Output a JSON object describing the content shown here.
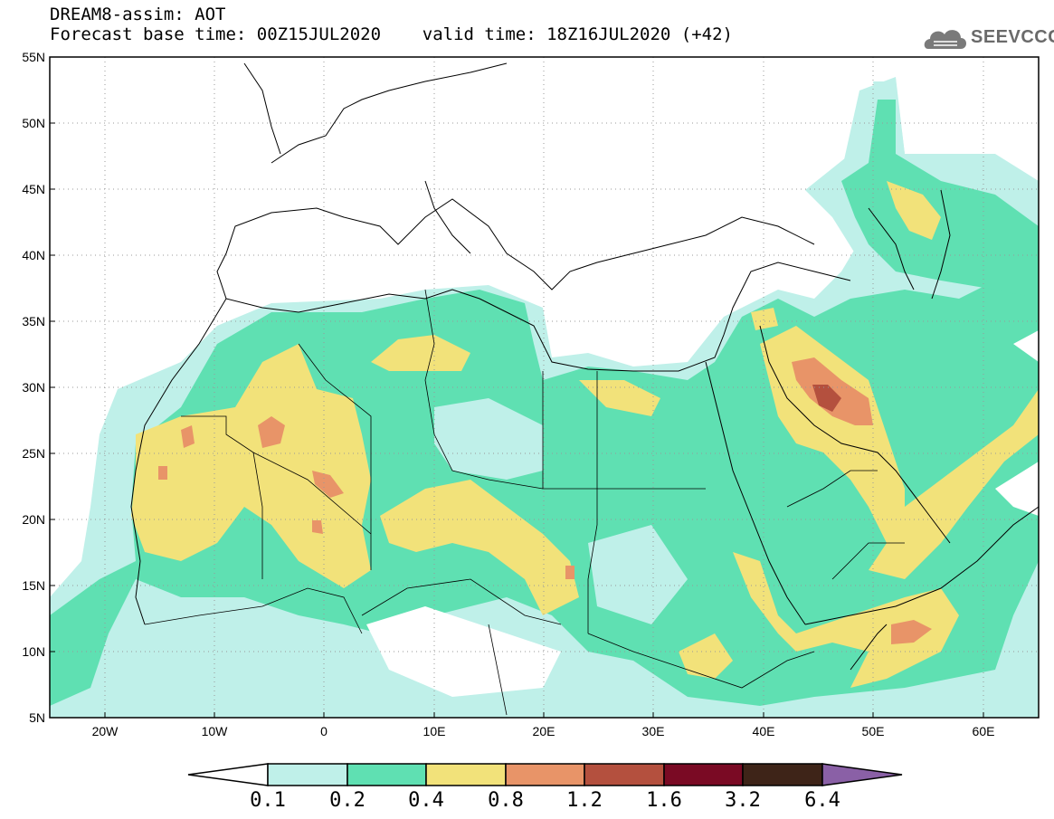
{
  "header": {
    "title_line1": "DREAM8-assim: AOT",
    "title_line2": "Forecast base time: 00Z15JUL2020    valid time: 18Z16JUL2020 (+42)"
  },
  "logo": {
    "text": "SEEVCCC",
    "icon": "cloud-logo-icon"
  },
  "map": {
    "lat_labels": [
      "55N",
      "50N",
      "45N",
      "40N",
      "35N",
      "30N",
      "25N",
      "20N",
      "15N",
      "10N",
      "5N"
    ],
    "lon_labels": [
      "20W",
      "10W",
      "0",
      "10E",
      "20E",
      "30E",
      "40E",
      "50E",
      "60E"
    ],
    "lat_range": [
      5,
      55
    ],
    "lon_range": [
      -25,
      65
    ],
    "grid": "dotted"
  },
  "legend": {
    "levels": [
      "0.1",
      "0.2",
      "0.4",
      "0.8",
      "1.2",
      "1.6",
      "3.2",
      "6.4"
    ],
    "colors": [
      "#ffffff",
      "#bff0e9",
      "#5fe0b2",
      "#f2e27a",
      "#e89468",
      "#b4503e",
      "#7a0a24",
      "#3e2418",
      "#8a60a6"
    ]
  }
}
